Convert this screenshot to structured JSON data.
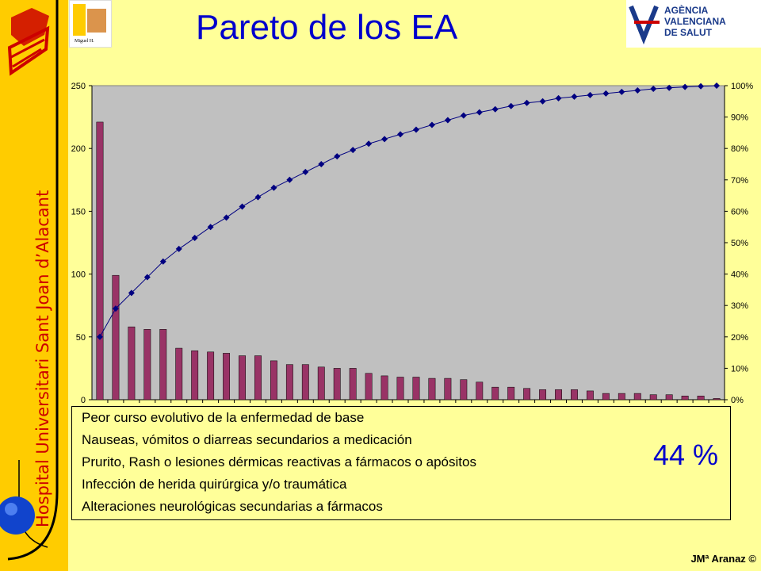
{
  "slide": {
    "title": "Pareto de los EA",
    "hospital_name": "Hospital Universitari Sant Joan d’Alacant",
    "logo_left_text": "UNIVERSITAS Miguel Hernández",
    "logo_right_lines": [
      "AGÈNCIA",
      "VALENCIANA",
      "DE SALUT"
    ],
    "credit": "JMª Aranaz ©",
    "legend_items": [
      "Peor curso evolutivo de la enfermedad de base",
      "Nauseas, vómitos o diarreas secundarios a medicación",
      "Prurito, Rash o lesiones dérmicas reactivas a fármacos o apósitos",
      "Infección de herida quirúrgica y/o traumática",
      "Alteraciones neurológicas secundarias a fármacos"
    ],
    "percentage": "44 %"
  },
  "colors": {
    "bar": "#993366",
    "line": "#000080",
    "plot_bg": "#c0c0c0",
    "accent_text": "#0000cc"
  },
  "chart_data": {
    "type": "bar",
    "series": [
      {
        "values": [
          221,
          99,
          58,
          56,
          56,
          41,
          39,
          38,
          37,
          35,
          35,
          31,
          28,
          28,
          26,
          25,
          25,
          21,
          19,
          18,
          18,
          17,
          17,
          16,
          14,
          10,
          10,
          9,
          8,
          8,
          8,
          7,
          5,
          5,
          5,
          4,
          4,
          3,
          3,
          1
        ]
      },
      {
        "values": [
          20,
          29,
          34,
          39,
          44,
          48,
          51.5,
          55,
          58,
          61.5,
          64.5,
          67.5,
          70,
          72.5,
          75,
          77.5,
          79.5,
          81.5,
          83,
          84.5,
          86,
          87.5,
          89,
          90.5,
          91.5,
          92.5,
          93.5,
          94.5,
          95,
          96,
          96.5,
          97,
          97.5,
          98,
          98.5,
          99,
          99.3,
          99.6,
          99.8,
          100
        ]
      }
    ],
    "y_ticks": [
      "0",
      "50",
      "100",
      "150",
      "200",
      "250"
    ],
    "y2_ticks": [
      "0%",
      "10%",
      "20%",
      "30%",
      "40%",
      "50%",
      "60%",
      "70%",
      "80%",
      "90%",
      "100%"
    ],
    "ylim": [
      0,
      250
    ],
    "y2lim": [
      0,
      100
    ],
    "grid": false
  }
}
